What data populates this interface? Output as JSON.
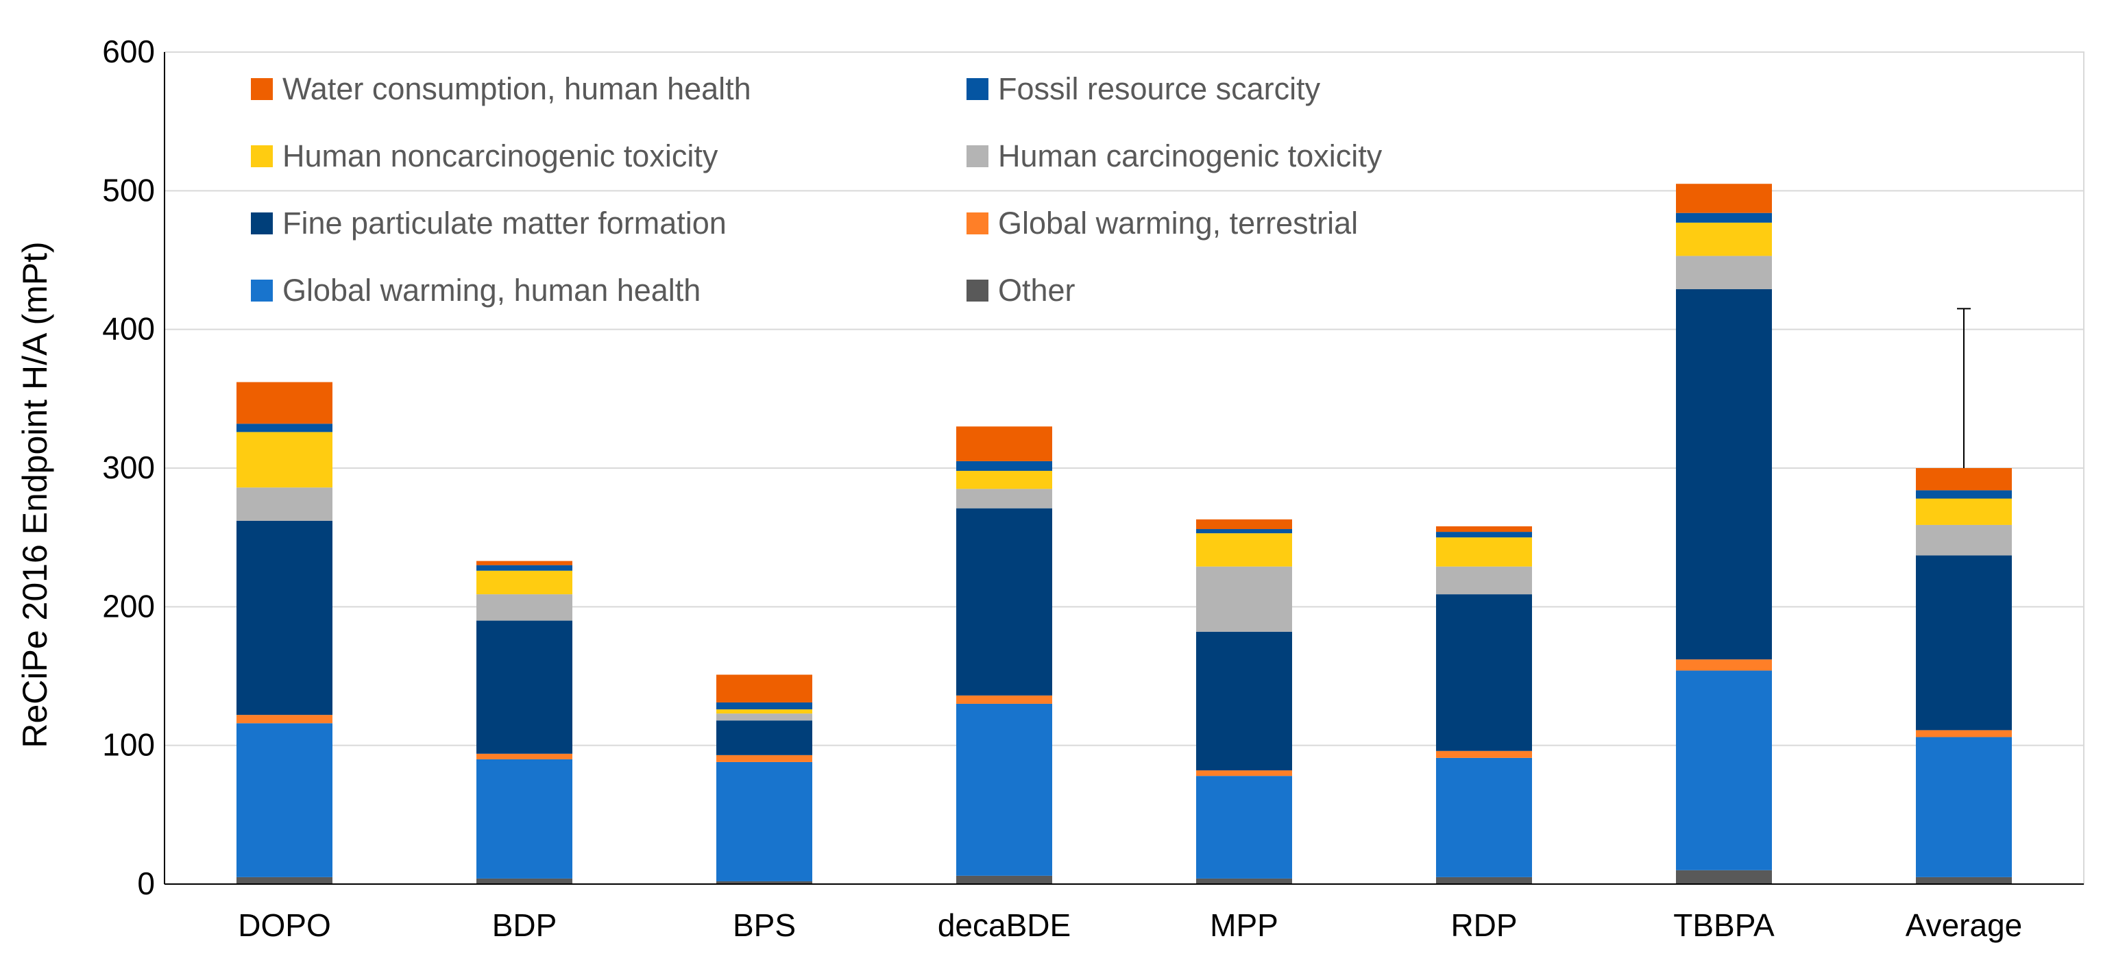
{
  "chart_data": {
    "type": "bar",
    "stacked": true,
    "title": "",
    "xlabel": "",
    "ylabel": "ReCiPe 2016 Endpoint H/A (mPt)",
    "ylim": [
      0,
      600
    ],
    "yticks": [
      0,
      100,
      200,
      300,
      400,
      500,
      600
    ],
    "ytick_labels": [
      "0",
      "100",
      "200",
      "300",
      "400",
      "500",
      "600"
    ],
    "grid": true,
    "legend_position": "top-left inside",
    "categories": [
      "DOPO",
      "BDP",
      "BPS",
      "decaBDE",
      "MPP",
      "RDP",
      "TBBPA",
      "Average"
    ],
    "series": [
      {
        "name": "Other",
        "color": "#595959",
        "values": [
          5,
          4,
          2,
          6,
          4,
          5,
          10,
          5
        ]
      },
      {
        "name": "Global warming, human health",
        "color": "#1874CD",
        "values": [
          111,
          86,
          86,
          124,
          74,
          86,
          144,
          101
        ]
      },
      {
        "name": "Global warming, terrestrial",
        "color": "#FF7F27",
        "values": [
          6,
          4,
          5,
          6,
          4,
          5,
          8,
          5
        ]
      },
      {
        "name": "Fine particulate matter formation",
        "color": "#003F7A",
        "values": [
          140,
          96,
          25,
          135,
          100,
          113,
          267,
          126
        ]
      },
      {
        "name": "Human carcinogenic toxicity",
        "color": "#B4B4B4",
        "values": [
          24,
          19,
          5,
          14,
          47,
          20,
          24,
          22
        ]
      },
      {
        "name": "Human noncarcinogenic toxicity",
        "color": "#FFCC11",
        "values": [
          40,
          17,
          3,
          13,
          24,
          21,
          24,
          19
        ]
      },
      {
        "name": "Fossil resource scarcity",
        "color": "#0555A2",
        "values": [
          6,
          4,
          5,
          7,
          3,
          4,
          7,
          6
        ]
      },
      {
        "name": "Water consumption, human health",
        "color": "#EE5F00",
        "values": [
          30,
          3,
          20,
          25,
          7,
          4,
          21,
          16
        ]
      }
    ],
    "error_bar": {
      "category": "Average",
      "upper": 415
    },
    "legend_order": [
      "Water consumption, human health",
      "Fossil resource scarcity",
      "Human noncarcinogenic toxicity",
      "Human carcinogenic toxicity",
      "Fine particulate matter formation",
      "Global warming, terrestrial",
      "Global warming, human health",
      "Other"
    ]
  }
}
